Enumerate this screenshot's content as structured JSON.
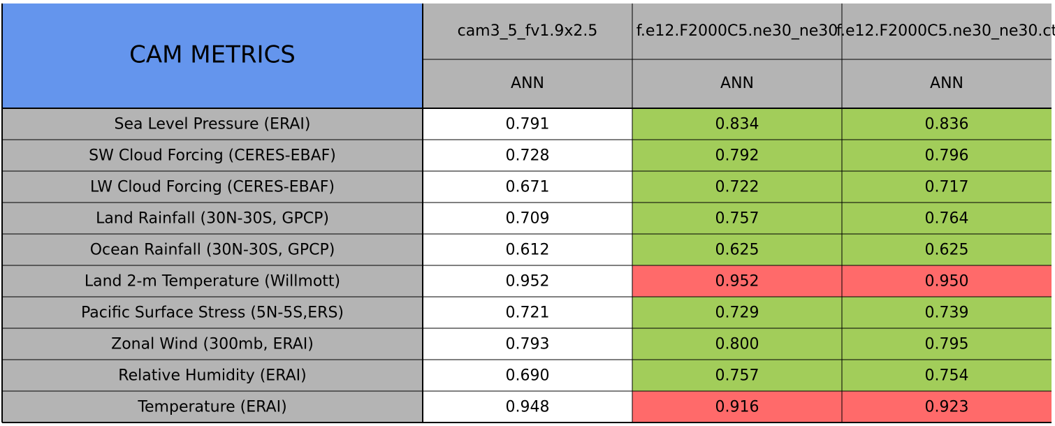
{
  "header": {
    "title": "CAM METRICS",
    "columns": [
      "cam3_5_fv1.9x2.5",
      "f.e12.F2000C5.ne30_ne30",
      "f.e12.F2000C5.ne30_ne30.ct"
    ],
    "periods": [
      "ANN",
      "ANN",
      "ANN"
    ]
  },
  "table": {
    "rows": [
      {
        "label": "Sea Level Pressure (ERAI)",
        "cells": [
          "0.791",
          "0.834",
          "0.836"
        ],
        "fills": [
          "#ffffff",
          "#a2cd5a",
          "#a2cd5a"
        ]
      },
      {
        "label": "SW Cloud Forcing (CERES-EBAF)",
        "cells": [
          "0.728",
          "0.792",
          "0.796"
        ],
        "fills": [
          "#ffffff",
          "#a2cd5a",
          "#a2cd5a"
        ]
      },
      {
        "label": "LW Cloud Forcing (CERES-EBAF)",
        "cells": [
          "0.671",
          "0.722",
          "0.717"
        ],
        "fills": [
          "#ffffff",
          "#a2cd5a",
          "#a2cd5a"
        ]
      },
      {
        "label": "Land Rainfall (30N-30S, GPCP)",
        "cells": [
          "0.709",
          "0.757",
          "0.764"
        ],
        "fills": [
          "#ffffff",
          "#a2cd5a",
          "#a2cd5a"
        ]
      },
      {
        "label": "Ocean Rainfall (30N-30S, GPCP)",
        "cells": [
          "0.612",
          "0.625",
          "0.625"
        ],
        "fills": [
          "#ffffff",
          "#a2cd5a",
          "#a2cd5a"
        ]
      },
      {
        "label": "Land 2-m Temperature (Willmott)",
        "cells": [
          "0.952",
          "0.952",
          "0.950"
        ],
        "fills": [
          "#ffffff",
          "#ff6a6a",
          "#ff6a6a"
        ]
      },
      {
        "label": "Pacific Surface Stress (5N-5S,ERS)",
        "cells": [
          "0.721",
          "0.729",
          "0.739"
        ],
        "fills": [
          "#ffffff",
          "#a2cd5a",
          "#a2cd5a"
        ]
      },
      {
        "label": "Zonal Wind (300mb, ERAI)",
        "cells": [
          "0.793",
          "0.800",
          "0.795"
        ],
        "fills": [
          "#ffffff",
          "#a2cd5a",
          "#a2cd5a"
        ]
      },
      {
        "label": "Relative Humidity (ERAI)",
        "cells": [
          "0.690",
          "0.757",
          "0.754"
        ],
        "fills": [
          "#ffffff",
          "#a2cd5a",
          "#a2cd5a"
        ]
      },
      {
        "label": "Temperature (ERAI)",
        "cells": [
          "0.948",
          "0.916",
          "0.923"
        ],
        "fills": [
          "#ffffff",
          "#ff6a6a",
          "#ff6a6a"
        ]
      }
    ]
  }
}
